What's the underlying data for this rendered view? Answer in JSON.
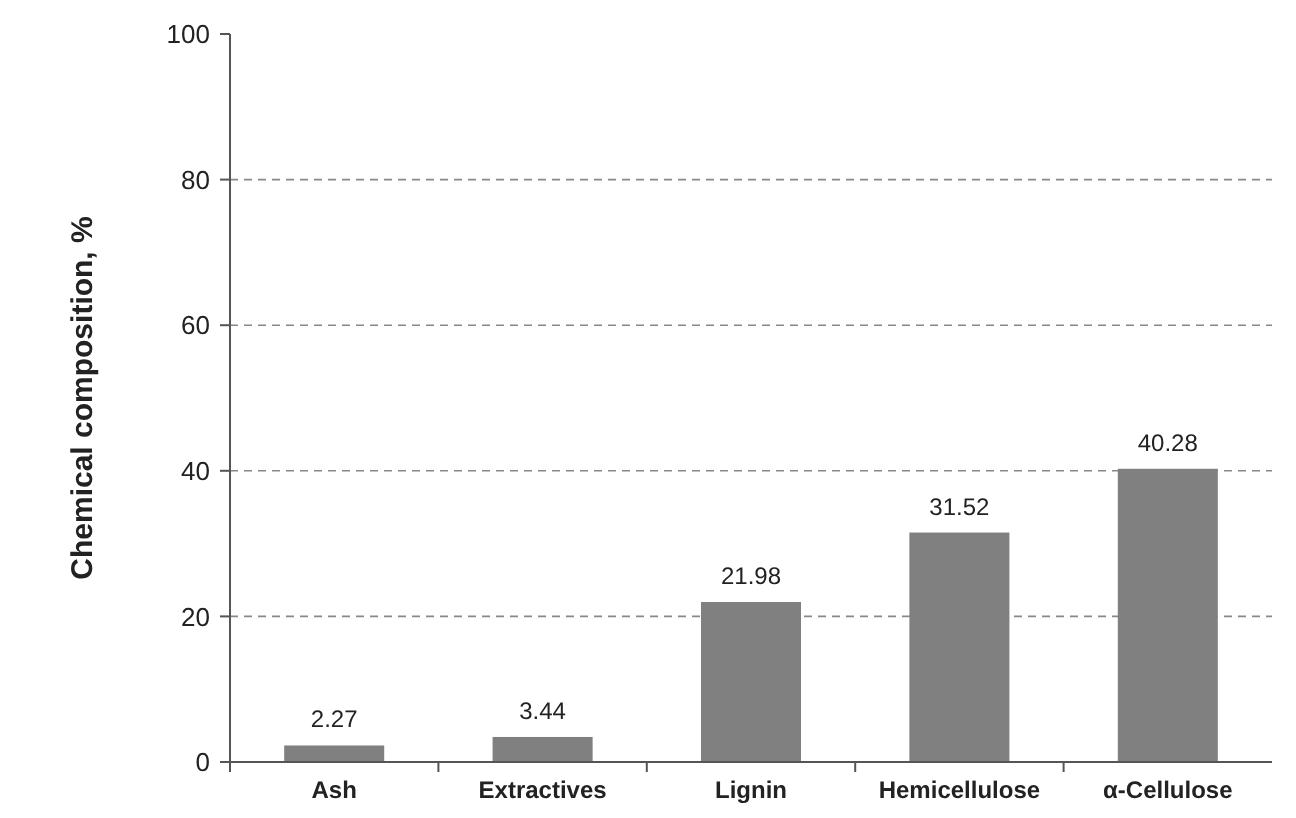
{
  "chart_data": {
    "type": "bar",
    "ylabel": "Chemical composition, %",
    "categories": [
      "Ash",
      "Extractives",
      "Lignin",
      "Hemicellulose",
      "α-Cellulose"
    ],
    "values": [
      2.27,
      3.44,
      21.98,
      31.52,
      40.28
    ],
    "color": "#808080",
    "ylim": [
      0,
      100
    ],
    "yticks": [
      0,
      20,
      40,
      60,
      80,
      100
    ],
    "grid": "y",
    "data_labels": true
  }
}
